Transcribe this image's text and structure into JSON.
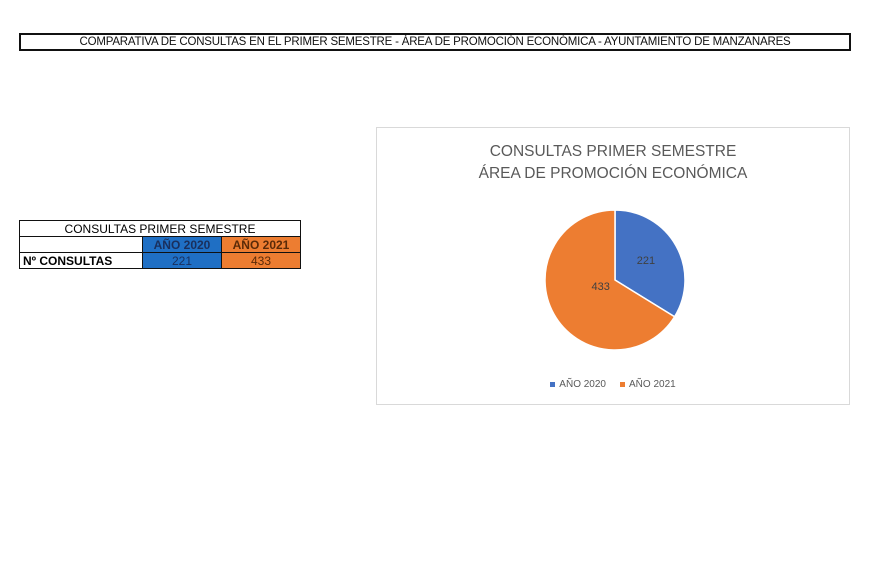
{
  "banner": {
    "title": "COMPARATIVA DE CONSULTAS EN EL PRIMER SEMESTRE - ÁREA DE PROMOCIÓN ECONÓMICA - AYUNTAMIENTO DE MANZANARES"
  },
  "table": {
    "caption": "CONSULTAS PRIMER SEMESTRE",
    "headers": [
      "",
      "AÑO 2020",
      "AÑO 2021"
    ],
    "row_label": "Nº CONSULTAS",
    "values": [
      "221",
      "433"
    ]
  },
  "chart": {
    "title_line1": "CONSULTAS PRIMER SEMESTRE",
    "title_line2": "ÁREA DE PROMOCIÓN ECONÓMICA",
    "legend": [
      "AÑO 2020",
      "AÑO 2021"
    ],
    "colors": {
      "2020": "#4472c4",
      "2021": "#ed7d31"
    }
  },
  "chart_data": {
    "type": "pie",
    "title": "CONSULTAS PRIMER SEMESTRE ÁREA DE PROMOCIÓN ECONÓMICA",
    "categories": [
      "AÑO 2020",
      "AÑO 2021"
    ],
    "values": [
      221,
      433
    ],
    "data_labels": [
      "221",
      "433"
    ],
    "legend_position": "bottom",
    "colors": [
      "#4472c4",
      "#ed7d31"
    ]
  }
}
